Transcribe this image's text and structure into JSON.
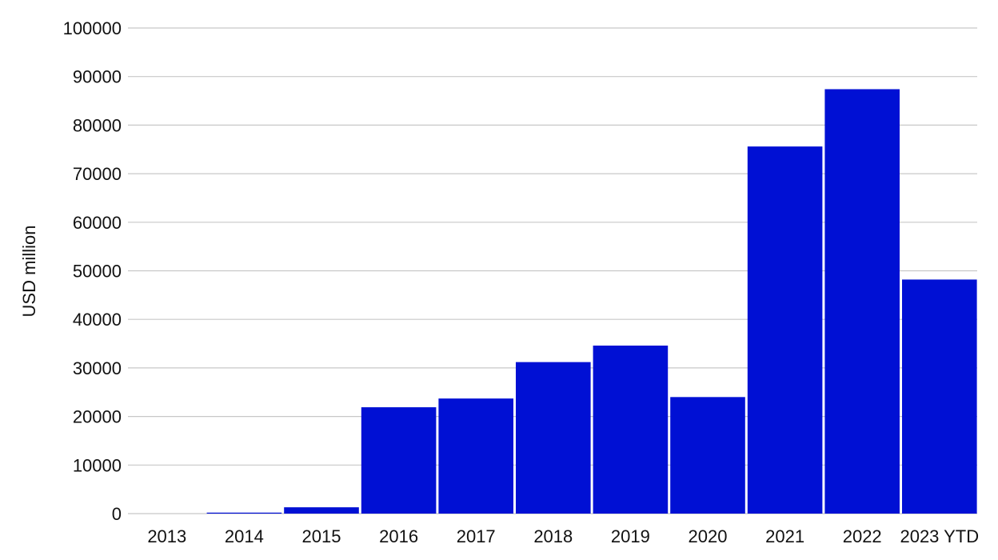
{
  "chart_data": {
    "type": "bar",
    "title": "",
    "xlabel": "",
    "ylabel": "USD million",
    "categories": [
      "2013",
      "2014",
      "2015",
      "2016",
      "2017",
      "2018",
      "2019",
      "2020",
      "2021",
      "2022",
      "2023 YTD"
    ],
    "values": [
      0,
      200,
      1300,
      21900,
      23700,
      31200,
      34600,
      24000,
      75600,
      87400,
      48200
    ],
    "ylim": [
      0,
      100000
    ],
    "yticks": [
      "0",
      "10000",
      "20000",
      "30000",
      "40000",
      "50000",
      "60000",
      "70000",
      "80000",
      "90000",
      "100000"
    ],
    "grid": "horizontal",
    "legend": "none",
    "bar_color": "#0010d4",
    "grid_color": "#c8c8c8"
  }
}
